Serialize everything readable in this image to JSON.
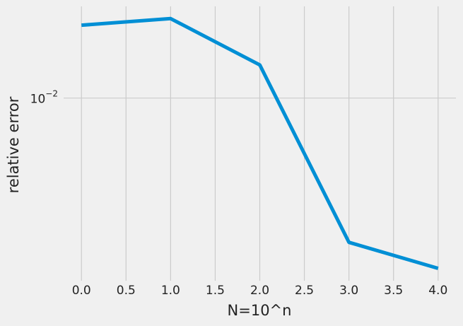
{
  "chart_data": {
    "type": "line",
    "x": [
      0,
      1,
      2,
      3,
      4
    ],
    "values": [
      0.0181,
      0.0191,
      0.0131,
      0.00309,
      0.0025
    ],
    "color": "#008fd5",
    "xlim": [
      -0.2,
      4.2
    ],
    "xticks": [
      {
        "value": 0,
        "label": "0.0"
      },
      {
        "value": 0.5,
        "label": "0.5"
      },
      {
        "value": 1,
        "label": "1.0"
      },
      {
        "value": 1.5,
        "label": "1.5"
      },
      {
        "value": 2,
        "label": "2.0"
      },
      {
        "value": 2.5,
        "label": "2.5"
      },
      {
        "value": 3,
        "label": "3.0"
      },
      {
        "value": 3.5,
        "label": "3.5"
      },
      {
        "value": 4,
        "label": "4.0"
      }
    ],
    "ylim": [
      0.00226,
      0.0211
    ],
    "yticks": [
      {
        "value": 0.01,
        "label": "10",
        "exponent": "−2"
      }
    ],
    "log_y": true,
    "grid": true,
    "xlabel": "N=10^n",
    "ylabel": "relative error"
  }
}
